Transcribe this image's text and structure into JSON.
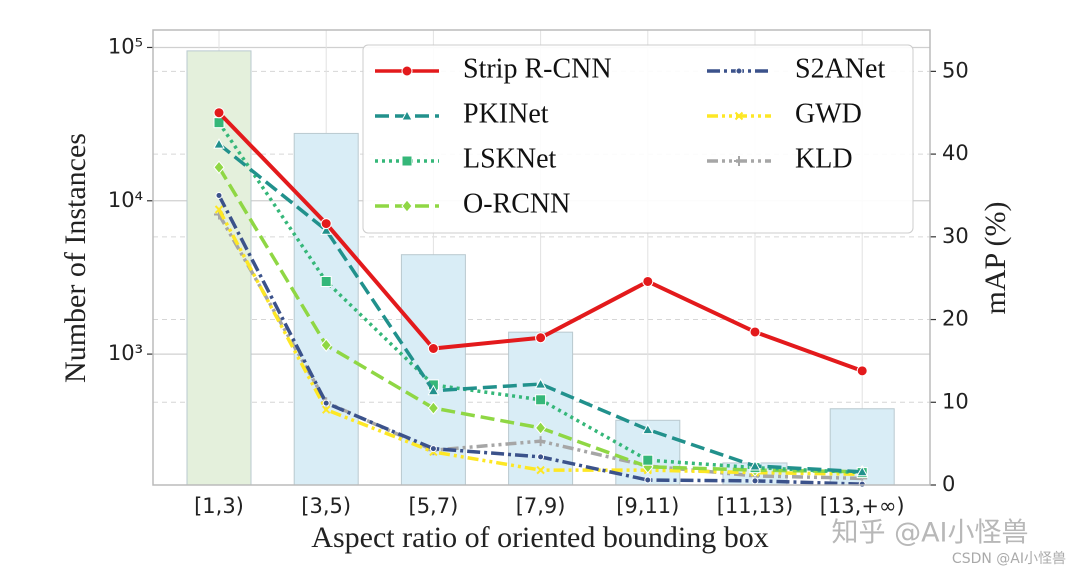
{
  "chart_data": {
    "type": "bar-line",
    "categories": [
      "[1,3)",
      "[3,5)",
      "[5,7)",
      "[7,9)",
      "[9,11)",
      "[11,13)",
      "[13,+∞)"
    ],
    "x_label": "Aspect ratio of oriented bounding box",
    "y_label": "Number of Instances",
    "y2_label": "mAP (%)",
    "ylim": [
      140,
      130000
    ],
    "log_y": true,
    "yticks": [
      {
        "value": 1000,
        "label": "10³"
      },
      {
        "value": 10000,
        "label": "10⁴"
      },
      {
        "value": 100000,
        "label": "10⁵"
      }
    ],
    "y2lim": [
      0,
      55
    ],
    "y2ticks": [
      0,
      10,
      20,
      30,
      40,
      50
    ],
    "grid": true,
    "legend_position": "upper-right",
    "bars": {
      "values": [
        95000,
        27500,
        4450,
        1390,
        370,
        195,
        440
      ],
      "colors": [
        "#e4f0dc",
        "#d9edf6",
        "#d9edf6",
        "#d9edf6",
        "#d9edf6",
        "#d9edf6",
        "#d9edf6"
      ]
    },
    "series": [
      {
        "name": "Strip R-CNN",
        "color": "#e31a1c",
        "axis": "y2",
        "marker": "circle",
        "dash": "solid",
        "values": [
          45.0,
          31.6,
          16.5,
          17.8,
          24.6,
          18.5,
          13.8
        ]
      },
      {
        "name": "PKINet",
        "color": "#21918c",
        "axis": "y2",
        "marker": "triangle",
        "dash": "dashed",
        "values": [
          41.2,
          30.8,
          11.4,
          12.2,
          6.7,
          2.3,
          1.6
        ]
      },
      {
        "name": "LSKNet",
        "color": "#35b779",
        "axis": "y2",
        "marker": "square",
        "dash": "dotted",
        "values": [
          43.8,
          24.6,
          12.1,
          10.3,
          3.0,
          2.1,
          1.5
        ]
      },
      {
        "name": "O-RCNN",
        "color": "#8fd744",
        "axis": "y2",
        "marker": "diamond",
        "dash": "dashed",
        "values": [
          38.4,
          16.9,
          9.3,
          6.9,
          2.2,
          1.8,
          1.6
        ]
      },
      {
        "name": "S2ANet",
        "color": "#3b528b",
        "axis": "y2",
        "marker": "point",
        "dash": "dashdot",
        "values": [
          35.0,
          9.9,
          4.4,
          3.4,
          0.6,
          0.5,
          0.1
        ]
      },
      {
        "name": "GWD",
        "color": "#fde725",
        "axis": "y2",
        "marker": "x",
        "dash": "dashdotdot",
        "values": [
          33.3,
          9.1,
          4.0,
          1.8,
          1.8,
          1.5,
          1.3
        ]
      },
      {
        "name": "KLD",
        "color": "#a6a6a6",
        "axis": "y2",
        "marker": "plus",
        "dash": "dashdotdot",
        "values": [
          32.7,
          10.0,
          4.2,
          5.3,
          2.3,
          1.1,
          0.8
        ]
      }
    ]
  },
  "watermark": {
    "main": "知乎 @AI小怪兽",
    "footer": "CSDN @AI小怪兽"
  }
}
